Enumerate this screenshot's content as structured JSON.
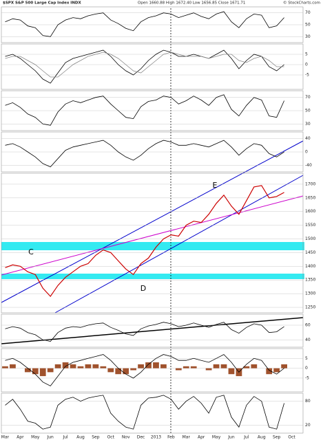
{
  "chart_data": [
    {
      "type": "line",
      "title": "$SPX S&P 500 Large Cap Index INDX",
      "subtitle": "Open 1660.88  High 1672.40  Low 1656.85  Close 1671.71",
      "credit": "© StockCharts.com",
      "ylim": [
        20,
        80
      ],
      "yticks": [
        30,
        50,
        70
      ],
      "series": [
        {
          "color": "#000000",
          "values": [
            55,
            60,
            58,
            48,
            45,
            32,
            30,
            50,
            58,
            62,
            60,
            65,
            68,
            70,
            58,
            52,
            44,
            40,
            55,
            62,
            65,
            70,
            68,
            62,
            66,
            70,
            64,
            60,
            68,
            72,
            55,
            45,
            60,
            68,
            66,
            45,
            48,
            62,
            null,
            null
          ]
        }
      ]
    },
    {
      "type": "line",
      "ylim": [
        -12,
        10
      ],
      "yticks": [
        -5,
        0,
        5
      ],
      "series": [
        {
          "color": "#000000",
          "values": [
            4,
            5,
            3,
            0,
            -3,
            -7,
            -9,
            -4,
            1,
            3,
            4,
            5,
            6,
            7,
            4,
            0,
            -3,
            -5,
            -2,
            2,
            5,
            7,
            6,
            4,
            4,
            5,
            4,
            3,
            5,
            7,
            3,
            -2,
            2,
            5,
            4,
            -1,
            -3,
            0,
            null,
            null
          ]
        },
        {
          "color": "#888888",
          "values": [
            3,
            4,
            4,
            2,
            0,
            -3,
            -6,
            -6,
            -3,
            0,
            2,
            4,
            5,
            6,
            5,
            3,
            0,
            -3,
            -4,
            -1,
            2,
            5,
            6,
            5,
            4,
            4,
            4,
            3,
            4,
            5,
            5,
            2,
            1,
            3,
            4,
            2,
            -1,
            -1,
            null,
            null
          ]
        }
      ]
    },
    {
      "type": "line",
      "ylim": [
        20,
        80
      ],
      "yticks": [
        30,
        50,
        70
      ],
      "series": [
        {
          "color": "#000000",
          "values": [
            58,
            62,
            55,
            45,
            40,
            30,
            28,
            48,
            60,
            65,
            62,
            66,
            70,
            72,
            60,
            50,
            40,
            38,
            56,
            64,
            66,
            72,
            70,
            60,
            65,
            72,
            66,
            58,
            70,
            74,
            52,
            42,
            58,
            70,
            66,
            42,
            40,
            65,
            null,
            null
          ]
        }
      ]
    },
    {
      "type": "line",
      "ylim": [
        -60,
        60
      ],
      "yticks": [
        -40,
        0,
        40
      ],
      "series": [
        {
          "color": "#000000",
          "values": [
            20,
            25,
            15,
            0,
            -15,
            -35,
            -45,
            -20,
            5,
            15,
            20,
            25,
            30,
            35,
            20,
            0,
            -15,
            -25,
            -10,
            10,
            25,
            35,
            30,
            20,
            20,
            25,
            20,
            15,
            25,
            35,
            15,
            -10,
            10,
            25,
            20,
            -5,
            -15,
            0,
            null,
            null
          ]
        }
      ]
    },
    {
      "type": "line",
      "ylim": [
        1230,
        1740
      ],
      "yticks": [
        1250,
        1300,
        1350,
        1400,
        1450,
        1500,
        1550,
        1600,
        1650,
        1700
      ],
      "categories": [
        "Mar",
        null,
        "Apr",
        null,
        "May",
        null,
        "Jun",
        null,
        "Jul",
        null,
        "Aug",
        null,
        "Sep",
        null,
        "Oct",
        null,
        "Nov",
        null,
        "Dec",
        null,
        "2013",
        null,
        "Feb",
        null,
        "Mar",
        null,
        "Apr",
        null,
        "May",
        null,
        "Jun",
        null,
        "Jul",
        null,
        "Aug",
        null,
        "Sep",
        null,
        "Oct",
        null
      ],
      "annotations": [
        "C",
        "D",
        "E"
      ],
      "series": [
        {
          "color": "#cc0000",
          "values": [
            1395,
            1405,
            1400,
            1380,
            1370,
            1320,
            1290,
            1330,
            1360,
            1380,
            1400,
            1410,
            1440,
            1460,
            1450,
            1420,
            1390,
            1370,
            1410,
            1430,
            1470,
            1500,
            1515,
            1510,
            1550,
            1565,
            1560,
            1590,
            1630,
            1660,
            1620,
            1590,
            1640,
            1690,
            1695,
            1650,
            1655,
            1670,
            null,
            null
          ]
        }
      ]
    },
    {
      "type": "line",
      "ylim": [
        30,
        75
      ],
      "yticks": [
        40,
        60
      ],
      "series": [
        {
          "color": "#000000",
          "values": [
            55,
            58,
            56,
            50,
            47,
            40,
            38,
            50,
            56,
            58,
            57,
            60,
            62,
            63,
            57,
            53,
            48,
            46,
            55,
            59,
            61,
            64,
            62,
            58,
            60,
            63,
            60,
            57,
            61,
            64,
            54,
            49,
            57,
            62,
            60,
            50,
            51,
            58,
            null,
            null
          ]
        }
      ]
    },
    {
      "type": "macd",
      "ylim": [
        -12,
        10
      ],
      "yticks": [
        -5,
        0,
        5
      ],
      "hist_color": "#a0522d",
      "histogram": [
        1,
        2,
        0,
        -2,
        -3,
        -4,
        -2,
        2,
        3,
        2,
        1,
        2,
        2,
        1,
        -2,
        -3,
        -3,
        -1,
        2,
        3,
        3,
        2,
        0,
        -1,
        1,
        1,
        0,
        -1,
        2,
        2,
        -3,
        -4,
        1,
        2,
        0,
        -3,
        -2,
        2,
        null,
        null
      ],
      "series": [
        {
          "color": "#000000",
          "values": [
            4,
            5,
            3,
            0,
            -3,
            -7,
            -9,
            -4,
            1,
            3,
            4,
            5,
            6,
            7,
            4,
            0,
            -3,
            -5,
            -2,
            2,
            5,
            7,
            6,
            4,
            4,
            5,
            4,
            3,
            5,
            7,
            3,
            -2,
            2,
            5,
            4,
            -1,
            -3,
            0,
            null,
            null
          ]
        }
      ]
    },
    {
      "type": "line",
      "ylim": [
        0,
        100
      ],
      "yticks": [
        20,
        80
      ],
      "series": [
        {
          "color": "#000000",
          "values": [
            70,
            85,
            60,
            30,
            25,
            10,
            15,
            70,
            85,
            90,
            80,
            88,
            92,
            95,
            50,
            30,
            15,
            10,
            70,
            88,
            90,
            95,
            85,
            60,
            80,
            92,
            75,
            50,
            90,
            95,
            40,
            15,
            70,
            92,
            80,
            15,
            10,
            75,
            null,
            null
          ]
        }
      ]
    }
  ]
}
